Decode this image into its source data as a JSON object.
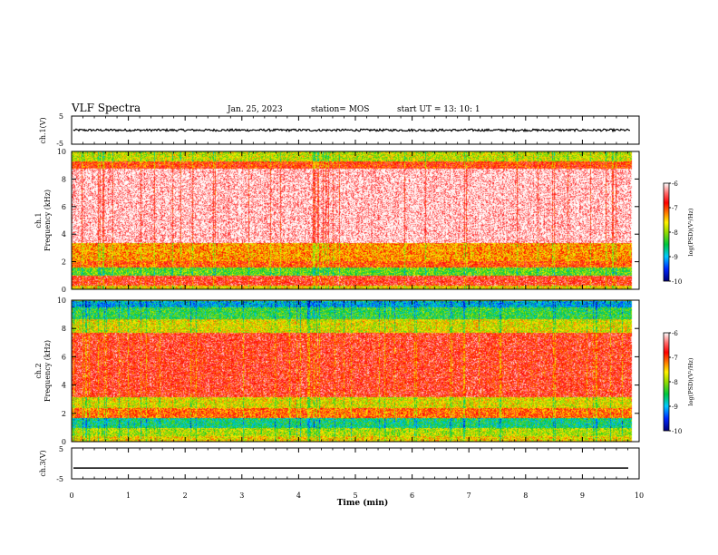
{
  "header": {
    "title": "VLF Spectra",
    "date": "Jan. 25, 2023",
    "station": "station= MOS",
    "start": "start  UT =  13: 10: 1"
  },
  "chart_data": [
    {
      "type": "line",
      "ylabel": "ch.1(V)",
      "ylim": [
        -5,
        5
      ],
      "ytick_labels": [
        "5",
        "-5"
      ],
      "approx_level": 0,
      "noise_amplitude": 0.4
    },
    {
      "type": "heatmap",
      "ylabel_line1": "ch.1",
      "ylabel_line2": "Frequency (kHz)",
      "ylim": [
        0,
        10
      ],
      "yticks": [
        "0",
        "2",
        "4",
        "6",
        "8",
        "10"
      ],
      "colorbar": {
        "label": "log(PSD)(V²/Hz)",
        "ticks": [
          "-6",
          "-7",
          "-8",
          "-9",
          "-10"
        ],
        "range": [
          -10,
          -6
        ]
      },
      "bands": [
        {
          "from": 0.0,
          "to": 0.3,
          "level": -7.6
        },
        {
          "from": 0.3,
          "to": 1.0,
          "level": -6.7
        },
        {
          "from": 1.0,
          "to": 1.6,
          "level": -8.2
        },
        {
          "from": 1.6,
          "to": 2.1,
          "level": -7.0
        },
        {
          "from": 2.1,
          "to": 3.4,
          "level": -7.3
        },
        {
          "from": 3.4,
          "to": 8.8,
          "level": -6.1
        },
        {
          "from": 8.8,
          "to": 9.3,
          "level": -6.9
        },
        {
          "from": 9.3,
          "to": 10.0,
          "level": -7.8
        }
      ]
    },
    {
      "type": "heatmap",
      "ylabel_line1": "ch.2",
      "ylabel_line2": "Frequency (kHz)",
      "ylim": [
        0,
        10
      ],
      "yticks": [
        "0",
        "2",
        "4",
        "6",
        "8",
        "10"
      ],
      "colorbar": {
        "label": "log(PSD)(V²/Hz)",
        "ticks": [
          "-6",
          "-7",
          "-8",
          "-9",
          "-10"
        ],
        "range": [
          -10,
          -6
        ]
      },
      "bands": [
        {
          "from": 0.0,
          "to": 0.4,
          "level": -7.6
        },
        {
          "from": 0.4,
          "to": 1.0,
          "level": -7.9
        },
        {
          "from": 1.0,
          "to": 1.7,
          "level": -8.6
        },
        {
          "from": 1.7,
          "to": 2.4,
          "level": -7.1
        },
        {
          "from": 2.4,
          "to": 3.2,
          "level": -7.7
        },
        {
          "from": 3.2,
          "to": 7.7,
          "level": -6.7
        },
        {
          "from": 7.7,
          "to": 8.7,
          "level": -7.7
        },
        {
          "from": 8.7,
          "to": 9.5,
          "level": -8.4
        },
        {
          "from": 9.5,
          "to": 10.0,
          "level": -9.0
        }
      ]
    },
    {
      "type": "line",
      "ylabel": "ch.3(V)",
      "ylim": [
        -5,
        5
      ],
      "ytick_labels": [
        "5",
        "-5"
      ],
      "approx_level": -1.5,
      "noise_amplitude": 0
    }
  ],
  "xaxis": {
    "label": "Time (min)",
    "xlim": [
      0,
      10
    ],
    "ticks": [
      "0",
      "1",
      "2",
      "3",
      "4",
      "5",
      "6",
      "7",
      "8",
      "9",
      "10"
    ],
    "data_end": 9.85
  }
}
